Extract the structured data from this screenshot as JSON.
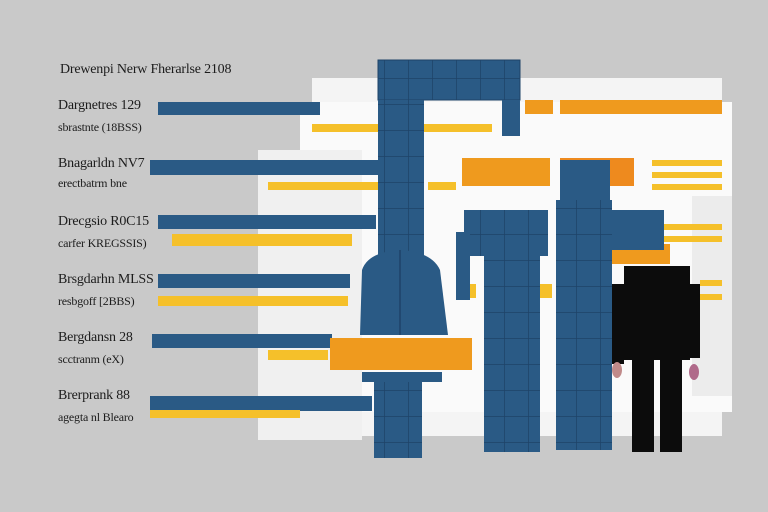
{
  "title": "Drewenpi Nerw Fherarlse 2108",
  "rows": [
    {
      "label": "Dargnetres 129",
      "sublabel": "sbrastnte (18BSS)"
    },
    {
      "label": "Bnagarldn NV7",
      "sublabel": "erectbatrm bne"
    },
    {
      "label": "Drecgsio R0C15",
      "sublabel": "carfer KREGSSIS)"
    },
    {
      "label": "Brsgdarhn MLSS",
      "sublabel": "resbgoff [2BBS)"
    },
    {
      "label": "Bergdansn 28",
      "sublabel": "scctranm (eX)"
    },
    {
      "label": "Brerprank 88",
      "sublabel": "agegta nl Blearo"
    }
  ],
  "colors": {
    "background": "#c9c9c9",
    "panel": "#f4f4f4",
    "navy": "#2a5a85",
    "orange": "#ef9a1e",
    "yellow": "#f5c02a",
    "figure_black": "#0c0c0c"
  }
}
